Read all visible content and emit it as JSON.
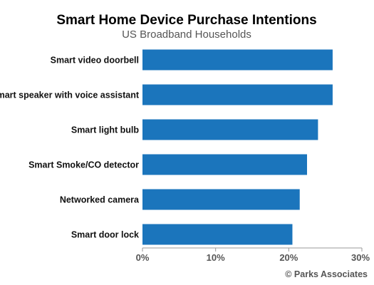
{
  "chart_data": {
    "type": "bar",
    "orientation": "horizontal",
    "title": "Smart Home Device Purchase Intentions",
    "subtitle": "US Broadband Households",
    "categories": [
      "Smart video doorbell",
      "Smart speaker with voice assistant",
      "Smart light bulb",
      "Smart Smoke/CO detector",
      "Networked camera",
      "Smart door lock"
    ],
    "values": [
      26,
      26,
      24,
      22.5,
      21.5,
      20.5
    ],
    "xlim": [
      0,
      30
    ],
    "xticks": [
      "0%",
      "10%",
      "20%",
      "30%"
    ],
    "xtick_values": [
      0,
      10,
      20,
      30
    ],
    "grid": false,
    "bar_color": "#1b75bc",
    "axis_color": "#999999"
  },
  "source": "© Parks Associates"
}
